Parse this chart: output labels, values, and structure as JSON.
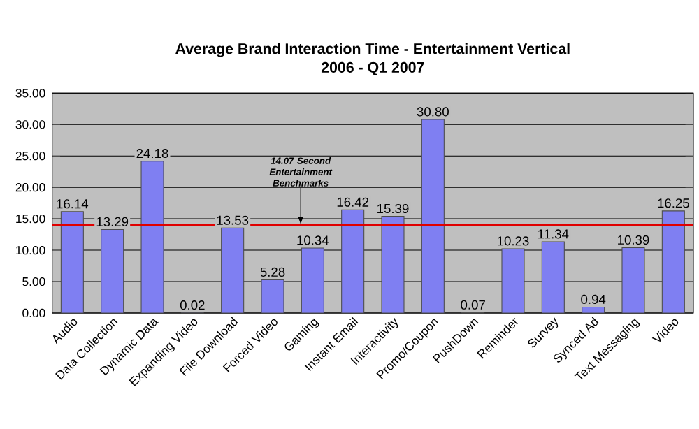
{
  "chart_data": {
    "type": "bar",
    "title": "Average Brand Interaction Time - Entertainment Vertical",
    "subtitle": "2006 - Q1 2007",
    "categories": [
      "Audio",
      "Data Collection",
      "Dynamic Data",
      "Expanding Video",
      "File Download",
      "Forced Video",
      "Gaming",
      "Instant Email",
      "Interactivity",
      "Promo/Coupon",
      "PushDown",
      "Reminder",
      "Survey",
      "Synced Ad",
      "Text Messaging",
      "Video"
    ],
    "values": [
      16.14,
      13.29,
      24.18,
      0.02,
      13.53,
      5.28,
      10.34,
      16.42,
      15.39,
      30.8,
      0.07,
      10.23,
      11.34,
      0.94,
      10.39,
      16.25
    ],
    "value_labels": [
      "16.14",
      "13.29",
      "24.18",
      "0.02",
      "13.53",
      "5.28",
      "10.34",
      "16.42",
      "15.39",
      "30.80",
      "0.07",
      "10.23",
      "11.34",
      "0.94",
      "10.39",
      "16.25"
    ],
    "color": "#7f7ff2",
    "ylim": [
      0,
      35
    ],
    "yticks": [
      {
        "value": 0,
        "label": "0.00"
      },
      {
        "value": 5,
        "label": "5.00"
      },
      {
        "value": 10,
        "label": "10.00"
      },
      {
        "value": 15,
        "label": "15.00"
      },
      {
        "value": 20,
        "label": "20.00"
      },
      {
        "value": 25,
        "label": "25.00"
      },
      {
        "value": 30,
        "label": "30.00"
      },
      {
        "value": 35,
        "label": "35.00"
      }
    ],
    "grid": "y",
    "ref_lines": [
      {
        "axis": "y",
        "value": 14.07,
        "label": "14.07 Second Entertainment Benchmarks",
        "color": "#e00000"
      }
    ]
  }
}
